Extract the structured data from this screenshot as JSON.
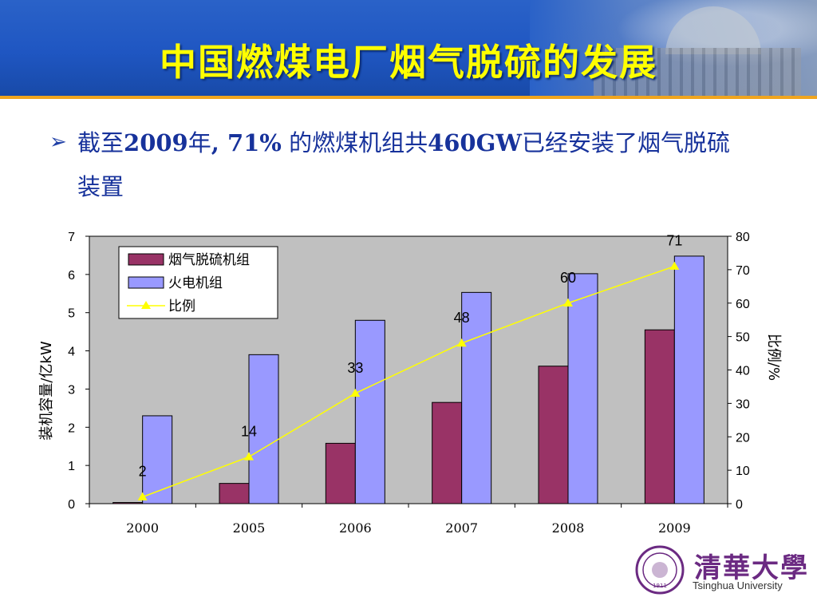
{
  "slide": {
    "title": "中国燃煤电厂烟气脱硫的发展",
    "bullet": {
      "seg1": "截至",
      "seg2": "2009",
      "seg3": "年",
      "seg4": ", 71%",
      "seg5": " 的燃煤机组共",
      "seg6": "460GW",
      "seg7": "已经安装了烟气脱硫装置"
    }
  },
  "logo": {
    "name_cn": "清華大學",
    "name_en": "Tsinghua University",
    "seal_text": "1911"
  },
  "colors": {
    "fgd_bar": "#993366",
    "thermal_bar": "#9999ff",
    "ratio_line": "#ffff00",
    "plot_bg": "#c0c0c0",
    "title_yellow": "#ffff00",
    "banner_blue": "#1f56c2"
  },
  "chart_data": {
    "type": "bar",
    "categories": [
      "2000",
      "2005",
      "2006",
      "2007",
      "2008",
      "2009"
    ],
    "series": [
      {
        "name": "烟气脱硫机组",
        "type": "bar",
        "axis": "left",
        "values": [
          0.03,
          0.53,
          1.58,
          2.65,
          3.6,
          4.55
        ]
      },
      {
        "name": "火电机组",
        "type": "bar",
        "axis": "left",
        "values": [
          2.3,
          3.9,
          4.8,
          5.53,
          6.02,
          6.48
        ]
      },
      {
        "name": "比例",
        "type": "line",
        "axis": "right",
        "values": [
          2,
          14,
          33,
          48,
          60,
          71
        ]
      }
    ],
    "data_labels": [
      "2",
      "14",
      "33",
      "48",
      "60",
      "71"
    ],
    "ylabel": "装机容量/亿kW",
    "y2label": "比例/%",
    "ylim": [
      0,
      7
    ],
    "y2lim": [
      0,
      80
    ],
    "yticks": [
      0,
      1,
      2,
      3,
      4,
      5,
      6,
      7
    ],
    "y2ticks": [
      0,
      10,
      20,
      30,
      40,
      50,
      60,
      70,
      80
    ],
    "legend_position": "top-left",
    "grid": false
  }
}
